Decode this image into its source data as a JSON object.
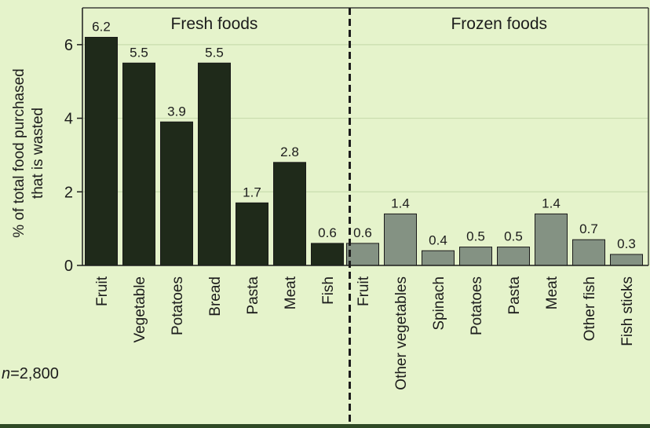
{
  "chart_data": {
    "type": "bar",
    "ylabel": "% of total food purchased that is wasted",
    "ylabel_lines": [
      "% of total food purchased",
      "that is wasted"
    ],
    "ylim": [
      0,
      7
    ],
    "yticks": [
      0,
      2,
      4,
      6
    ],
    "grid": true,
    "groups": [
      {
        "name": "Fresh foods",
        "color": "#1f2a1a",
        "categories": [
          "Fruit",
          "Vegetable",
          "Potatoes",
          "Bread",
          "Pasta",
          "Meat",
          "Fish"
        ],
        "values": [
          6.2,
          5.5,
          3.9,
          5.5,
          1.7,
          2.8,
          0.6
        ],
        "value_labels": [
          "6.2",
          "5.5",
          "3.9",
          "5.5",
          "1.7",
          "2.8",
          "0.6"
        ]
      },
      {
        "name": "Frozen foods",
        "color": "#849283",
        "categories": [
          "Fruit",
          "Other vegetables",
          "Spinach",
          "Potatoes",
          "Pasta",
          "Meat",
          "Other fish",
          "Fish sticks"
        ],
        "values": [
          0.6,
          1.4,
          0.4,
          0.5,
          0.5,
          1.4,
          0.7,
          0.3
        ],
        "value_labels": [
          "0.6",
          "1.4",
          "0.4",
          "0.5",
          "0.5",
          "1.4",
          "0.7",
          "0.3"
        ]
      }
    ]
  },
  "note": {
    "prefix": "n",
    "text": "=2,800"
  }
}
